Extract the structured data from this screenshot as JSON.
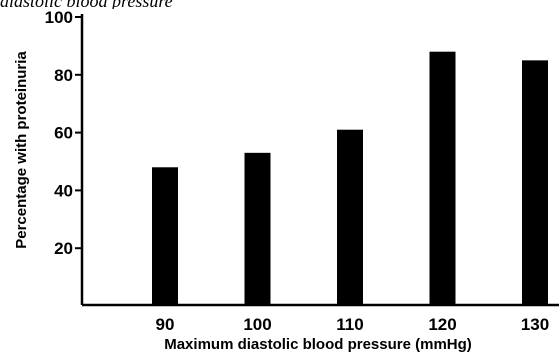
{
  "caption": "diastolic blood pressure",
  "chart_data": {
    "type": "bar",
    "categories": [
      "90",
      "100",
      "110",
      "120",
      "130"
    ],
    "values": [
      48,
      53,
      61,
      88,
      85
    ],
    "title": "",
    "xlabel": "Maximum diastolic blood pressure (mmHg)",
    "ylabel": "Percentage with proteinuria",
    "ylim": [
      0,
      100
    ],
    "yticks": [
      20,
      40,
      60,
      80,
      100
    ],
    "ytick_labels": [
      "20",
      "40",
      "60",
      "80",
      "100"
    ],
    "grid": false,
    "legend": "none",
    "bar_color": "#000000"
  }
}
